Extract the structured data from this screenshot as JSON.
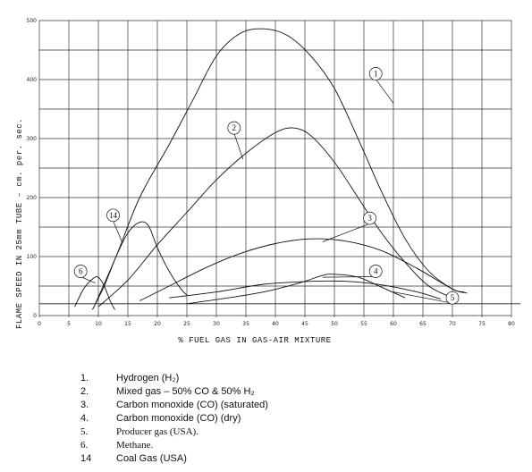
{
  "chart_data": {
    "type": "line",
    "xlabel": "% FUEL GAS IN GAS-AIR MIXTURE",
    "ylabel": "FLAME SPEED IN 25mm TUBE  –  cm. per. sec.",
    "xlim": [
      0,
      80
    ],
    "ylim": [
      0,
      500
    ],
    "x_ticks": [
      "0",
      "5",
      "10",
      "15",
      "20",
      "25",
      "30",
      "35",
      "40",
      "45",
      "50",
      "55",
      "60",
      "65",
      "70",
      "75",
      "80"
    ],
    "y_ticks": [
      "0",
      "100",
      "200",
      "300",
      "400",
      "500"
    ],
    "grid": true,
    "series": [
      {
        "name": "1",
        "points": [
          [
            9.5,
            20
          ],
          [
            13,
            100
          ],
          [
            17,
            200
          ],
          [
            22,
            290
          ],
          [
            26,
            365
          ],
          [
            30,
            440
          ],
          [
            34,
            478
          ],
          [
            38,
            486
          ],
          [
            42,
            475
          ],
          [
            46,
            440
          ],
          [
            50,
            385
          ],
          [
            54,
            300
          ],
          [
            58,
            210
          ],
          [
            62,
            130
          ],
          [
            66,
            75
          ],
          [
            70,
            45
          ],
          [
            72.5,
            38
          ]
        ]
      },
      {
        "name": "2",
        "points": [
          [
            10,
            15
          ],
          [
            15,
            60
          ],
          [
            20,
            120
          ],
          [
            25,
            175
          ],
          [
            30,
            230
          ],
          [
            35,
            275
          ],
          [
            40,
            310
          ],
          [
            43,
            318
          ],
          [
            46,
            305
          ],
          [
            50,
            260
          ],
          [
            54,
            200
          ],
          [
            58,
            140
          ],
          [
            62,
            90
          ],
          [
            66,
            50
          ],
          [
            70,
            30
          ]
        ]
      },
      {
        "name": "3",
        "points": [
          [
            17,
            25
          ],
          [
            22,
            50
          ],
          [
            28,
            80
          ],
          [
            34,
            105
          ],
          [
            40,
            122
          ],
          [
            46,
            130
          ],
          [
            52,
            126
          ],
          [
            58,
            110
          ],
          [
            64,
            80
          ],
          [
            70,
            45
          ],
          [
            72,
            40
          ]
        ]
      },
      {
        "name": "4",
        "points": [
          [
            25,
            20
          ],
          [
            32,
            30
          ],
          [
            38,
            40
          ],
          [
            44,
            55
          ],
          [
            48,
            68
          ],
          [
            50,
            70
          ],
          [
            54,
            65
          ],
          [
            58,
            48
          ],
          [
            62,
            30
          ]
        ]
      },
      {
        "name": "5",
        "points": [
          [
            22,
            30
          ],
          [
            30,
            40
          ],
          [
            38,
            53
          ],
          [
            46,
            58
          ],
          [
            52,
            58
          ],
          [
            58,
            52
          ],
          [
            64,
            40
          ],
          [
            68,
            28
          ]
        ]
      },
      {
        "name": "6",
        "points": [
          [
            6,
            15
          ],
          [
            7.5,
            45
          ],
          [
            9,
            62
          ],
          [
            10,
            65
          ],
          [
            11,
            50
          ],
          [
            12,
            25
          ],
          [
            12.8,
            10
          ]
        ]
      },
      {
        "name": "14",
        "points": [
          [
            9,
            10
          ],
          [
            11,
            50
          ],
          [
            13,
            100
          ],
          [
            15,
            140
          ],
          [
            17,
            158
          ],
          [
            18.5,
            152
          ],
          [
            20,
            115
          ],
          [
            22,
            75
          ],
          [
            24,
            45
          ],
          [
            25,
            35
          ]
        ]
      }
    ],
    "curve_labels": [
      {
        "id": "1",
        "x": 57,
        "y": 410
      },
      {
        "id": "2",
        "x": 33,
        "y": 318
      },
      {
        "id": "3",
        "x": 56,
        "y": 165
      },
      {
        "id": "4",
        "x": 57,
        "y": 75
      },
      {
        "id": "5",
        "x": 70,
        "y": 30
      },
      {
        "id": "6",
        "x": 7,
        "y": 75
      },
      {
        "id": "14",
        "x": 12.5,
        "y": 170
      }
    ]
  },
  "legend": [
    {
      "num": "1.",
      "text": "Hydrogen (H₂)",
      "serif": false
    },
    {
      "num": "2.",
      "text": "Mixed gas – 50% CO & 50% H₂",
      "serif": false
    },
    {
      "num": "3.",
      "text": "Carbon monoxide (CO) (saturated)",
      "serif": false
    },
    {
      "num": "4.",
      "text": "Carbon monoxide (CO) (dry)",
      "serif": false
    },
    {
      "num": "5.",
      "text": "Producer gas (USA).",
      "serif": true
    },
    {
      "num": "6.",
      "text": "Methane.",
      "serif": true
    },
    {
      "num": "14",
      "text": "Coal Gas (USA)",
      "serif": false
    }
  ]
}
